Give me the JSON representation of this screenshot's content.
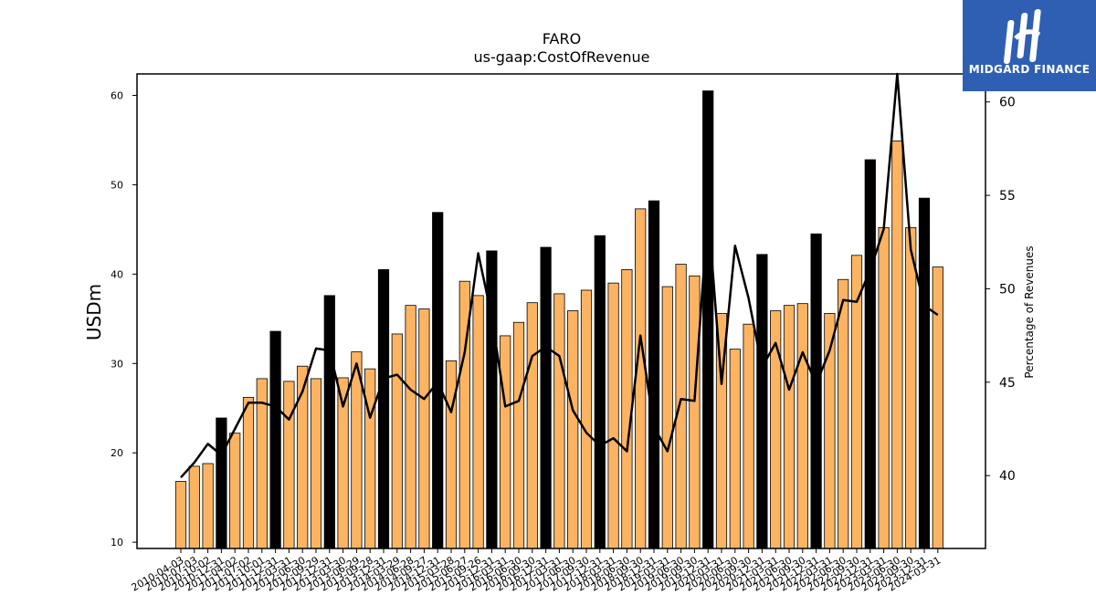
{
  "chart_data": {
    "type": "bar",
    "title": "FARO",
    "subtitle": "us-gaap:CostOfRevenue",
    "ylabel": "USDm",
    "y2label": "Percentage of Revenues",
    "ylim": [
      9.3,
      62.4
    ],
    "y2lim": [
      36.1,
      61.5
    ],
    "yticks": [
      10,
      20,
      30,
      40,
      50,
      60
    ],
    "y2ticks": [
      40,
      45,
      50,
      55,
      60
    ],
    "grid": false,
    "colors": {
      "bar": "#fdb462",
      "bar_highlight": "#000000",
      "line": "#000000"
    },
    "categories": [
      "2010-04-03",
      "2010-07-03",
      "2010-10-02",
      "2010-12-31",
      "2011-04-02",
      "2011-07-02",
      "2011-10-01",
      "2011-12-31",
      "2012-03-31",
      "2012-06-30",
      "2012-09-29",
      "2012-12-31",
      "2013-03-30",
      "2013-06-29",
      "2013-09-28",
      "2013-12-31",
      "2014-03-29",
      "2014-06-28",
      "2014-09-27",
      "2014-12-31",
      "2015-03-28",
      "2015-06-27",
      "2015-09-26",
      "2015-12-31",
      "2016-03-31",
      "2016-06-30",
      "2016-09-30",
      "2016-12-31",
      "2017-03-31",
      "2017-06-30",
      "2017-09-30",
      "2017-12-31",
      "2018-03-31",
      "2018-06-30",
      "2018-09-30",
      "2018-12-31",
      "2019-03-31",
      "2019-06-30",
      "2019-09-30",
      "2019-12-31",
      "2020-03-31",
      "2020-06-30",
      "2020-09-30",
      "2020-12-31",
      "2021-03-31",
      "2021-06-30",
      "2021-09-30",
      "2021-12-31",
      "2022-03-31",
      "2022-06-30",
      "2022-09-30",
      "2022-12-31",
      "2023-03-31",
      "2023-06-30",
      "2023-09-30",
      "2023-12-31",
      "2024-03-31"
    ],
    "series": [
      {
        "type": "bar",
        "values": [
          16.8,
          18.5,
          18.8,
          23.9,
          22.2,
          26.2,
          28.3,
          33.6,
          28.0,
          29.7,
          28.3,
          37.6,
          28.4,
          31.3,
          29.4,
          40.5,
          33.3,
          36.5,
          36.1,
          46.9,
          30.3,
          39.2,
          37.6,
          42.6,
          33.1,
          34.6,
          36.8,
          43.0,
          37.8,
          35.9,
          38.2,
          44.3,
          39.0,
          40.5,
          47.3,
          48.2,
          38.6,
          41.1,
          39.8,
          60.5,
          35.6,
          31.6,
          34.4,
          42.2,
          35.9,
          36.5,
          36.7,
          44.5,
          35.6,
          39.4,
          42.1,
          52.8,
          45.2,
          54.9,
          45.2,
          48.5,
          40.8
        ],
        "highlight": [
          false,
          false,
          false,
          true,
          false,
          false,
          false,
          true,
          false,
          false,
          false,
          true,
          false,
          false,
          false,
          true,
          false,
          false,
          false,
          true,
          false,
          false,
          false,
          true,
          false,
          false,
          false,
          true,
          false,
          false,
          false,
          true,
          false,
          false,
          false,
          true,
          false,
          false,
          false,
          true,
          false,
          false,
          false,
          true,
          false,
          false,
          false,
          true,
          false,
          false,
          false,
          true,
          false,
          false,
          false,
          true,
          false
        ]
      },
      {
        "type": "line",
        "axis": "right",
        "values": [
          39.9,
          40.7,
          41.7,
          41.1,
          42.5,
          43.9,
          43.9,
          43.7,
          43.0,
          44.5,
          46.8,
          46.7,
          43.7,
          46.0,
          43.1,
          45.2,
          45.4,
          44.6,
          44.1,
          45.0,
          43.4,
          46.6,
          51.9,
          48.5,
          43.7,
          44.0,
          46.4,
          46.9,
          46.4,
          43.5,
          42.3,
          41.6,
          42.0,
          41.3,
          47.5,
          42.6,
          41.3,
          44.1,
          44.0,
          54.2,
          44.9,
          52.3,
          49.5,
          45.8,
          47.1,
          44.6,
          46.6,
          44.9,
          46.7,
          49.4,
          49.3,
          51.0,
          53.2,
          61.5,
          52.1,
          49.1,
          48.6
        ]
      }
    ]
  },
  "logo": {
    "text": "MIDGARD FINANCE"
  }
}
